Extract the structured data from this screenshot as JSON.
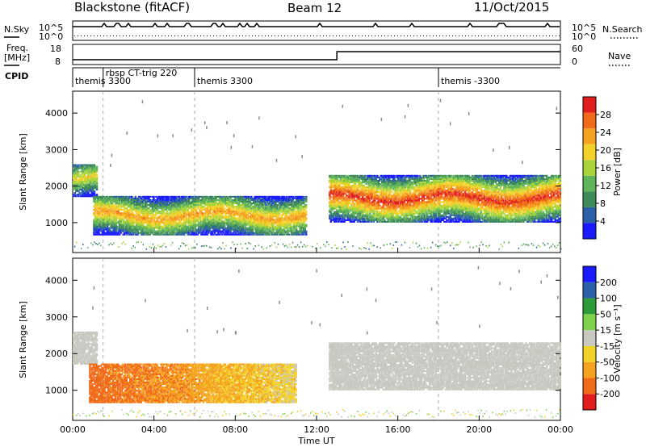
{
  "header": {
    "station": "Blackstone (fitACF)",
    "beam": "Beam 12",
    "date": "11/Oct/2015"
  },
  "left_labels": {
    "nsky": "N.Sky",
    "freq": "Freq.",
    "freq_unit": "[MHz]",
    "cpid": "CPID"
  },
  "right_labels": {
    "nsearch": "N.Search",
    "nave": "Nave"
  },
  "small_ticks": {
    "nsky_left": [
      "10^5",
      "10^0"
    ],
    "nsky_right": [
      "10^5",
      "10^0"
    ],
    "freq_left": [
      "18",
      "8"
    ],
    "nave_right": [
      "60",
      "0"
    ]
  },
  "cpid_modes": [
    {
      "label": "themis 3300",
      "start_hr": 0.0
    },
    {
      "label": "rbsp CT-trig 220",
      "start_hr": 1.5
    },
    {
      "label": "themis 3300",
      "start_hr": 6.0
    },
    {
      "label": "themis -3300",
      "start_hr": 18.0
    }
  ],
  "colors": {
    "power_scale": [
      "#1a1aff",
      "#2b5fa8",
      "#3f8a5a",
      "#5fb35a",
      "#a8d43a",
      "#f2d22a",
      "#f5a31e",
      "#f06a1a",
      "#e01e1e"
    ],
    "velocity_scale": [
      "#e01e1e",
      "#f06a1a",
      "#f5a31e",
      "#f2d22a",
      "#c8c8c0",
      "#7fd14a",
      "#2e9b3a",
      "#2b5fa8",
      "#1a1aff"
    ],
    "noise_dot": "#8a8a8a"
  },
  "chart_data": {
    "type": "heatmap",
    "x_axis": {
      "label": "Time UT",
      "range_hr": [
        0,
        24
      ],
      "ticks": [
        "00:00",
        "04:00",
        "08:00",
        "12:00",
        "16:00",
        "20:00",
        "00:00"
      ]
    },
    "panels": [
      {
        "name": "power",
        "ylabel": "Slant Range [km]",
        "yrange_km": [
          180,
          4600
        ],
        "yticks": [
          1000,
          2000,
          3000,
          4000
        ],
        "colorbar": {
          "label": "Power [dB]",
          "ticks": [
            4,
            8,
            12,
            16,
            20,
            24,
            28
          ],
          "range": [
            0,
            32
          ]
        },
        "echo_regions": [
          {
            "t0": 0.0,
            "t1": 1.2,
            "lo_km": 1700,
            "hi_km": 2600,
            "peak_db": 20
          },
          {
            "t0": 1.0,
            "t1": 11.5,
            "lo_km": 650,
            "hi_km": 1700,
            "peak_db": 24
          },
          {
            "t0": 12.6,
            "t1": 24.0,
            "lo_km": 1000,
            "hi_km": 2300,
            "peak_db": 30
          }
        ]
      },
      {
        "name": "velocity",
        "ylabel": "Slant Range [km]",
        "yrange_km": [
          180,
          4600
        ],
        "yticks": [
          1000,
          2000,
          3000,
          4000
        ],
        "colorbar": {
          "label": "Velocity [m s⁻¹]",
          "ticks": [
            200,
            100,
            50,
            15,
            -15,
            -50,
            -100,
            -200
          ],
          "range": [
            -250,
            250
          ]
        },
        "echo_regions": [
          {
            "t0": 0.0,
            "t1": 1.2,
            "lo_km": 1700,
            "hi_km": 2600,
            "vel": 0
          },
          {
            "t0": 0.8,
            "t1": 11.0,
            "lo_km": 650,
            "hi_km": 1700,
            "vel": -110
          },
          {
            "t0": 12.6,
            "t1": 24.0,
            "lo_km": 1000,
            "hi_km": 2300,
            "vel": 0
          }
        ]
      }
    ]
  }
}
